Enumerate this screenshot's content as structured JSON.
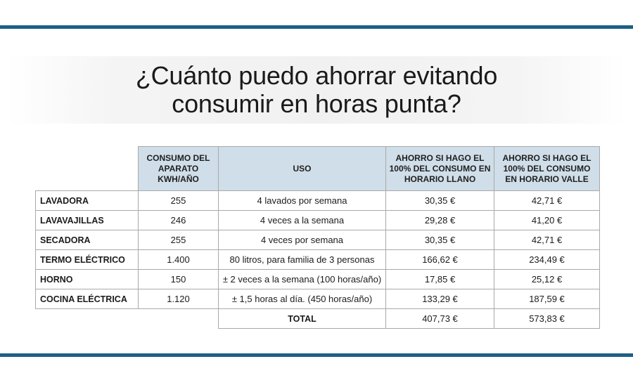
{
  "title": {
    "line1": "¿Cuánto puedo ahorrar evitando",
    "line2": "consumir en horas punta?"
  },
  "table": {
    "headers": {
      "consumo": "CONSUMO DEL APARATO KWH/AÑO",
      "uso": "USO",
      "ahorro_llano": "AHORRO SI HAGO EL 100% DEL CONSUMO EN HORARIO LLANO",
      "ahorro_valle": "AHORRO SI HAGO EL 100% DEL CONSUMO EN HORARIO VALLE"
    },
    "rows": [
      {
        "name": "LAVADORA",
        "consumo": "255",
        "uso": "4 lavados por semana",
        "llano": "30,35 €",
        "valle": "42,71 €"
      },
      {
        "name": "LAVAVAJILLAS",
        "consumo": "246",
        "uso": "4 veces a la semana",
        "llano": "29,28 €",
        "valle": "41,20 €"
      },
      {
        "name": "SECADORA",
        "consumo": "255",
        "uso": "4 veces por semana",
        "llano": "30,35 €",
        "valle": "42,71 €"
      },
      {
        "name": "TERMO ELÉCTRICO",
        "consumo": "1.400",
        "uso": "80 litros, para familia de 3 personas",
        "llano": "166,62 €",
        "valle": "234,49 €"
      },
      {
        "name": "HORNO",
        "consumo": "150",
        "uso": "± 2 veces a la semana (100 horas/año)",
        "llano": "17,85 €",
        "valle": "25,12 €"
      },
      {
        "name": "COCINA ELÉCTRICA",
        "consumo": "1.120",
        "uso": "± 1,5 horas al día. (450 horas/año)",
        "llano": "133,29 €",
        "valle": "187,59 €"
      }
    ],
    "total": {
      "label": "TOTAL",
      "llano": "407,73 €",
      "valle": "573,83 €"
    }
  },
  "colors": {
    "rule": "#1d5f86",
    "header_bg": "#cfdee9",
    "border": "#a9a9a9"
  }
}
